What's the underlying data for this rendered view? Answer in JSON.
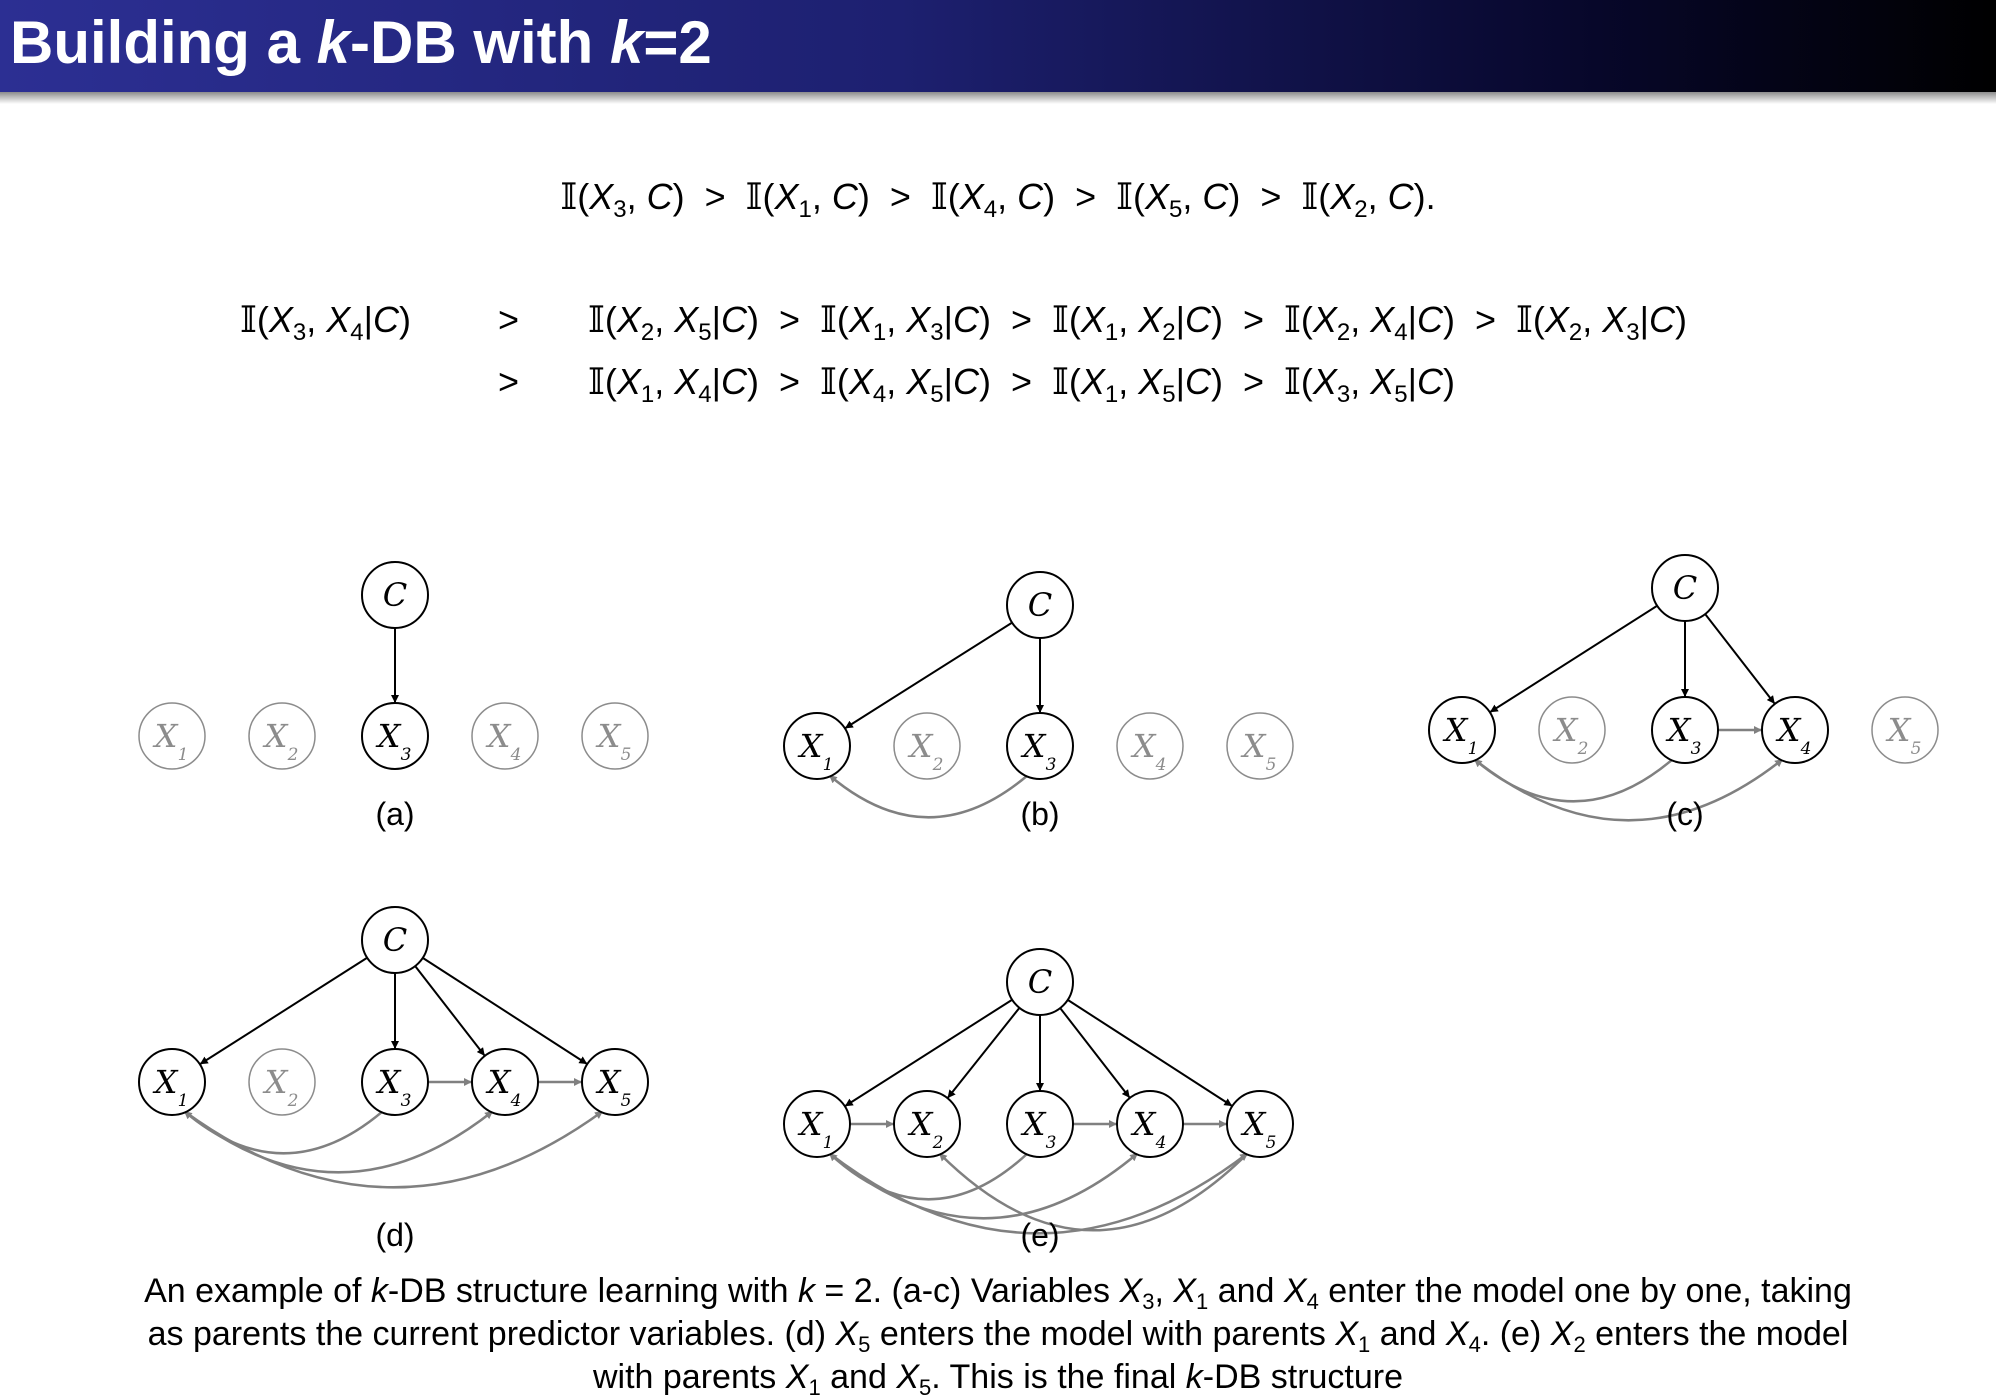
{
  "slide": {
    "title_prefix": "Building a ",
    "title_k": "k",
    "title_mid": "-DB with ",
    "title_k2": "k",
    "title_suffix": "=2"
  },
  "equations": {
    "mi_class": "𝕀(X3, C) > 𝕀(X1, C) > 𝕀(X4, C) > 𝕀(X5, C) > 𝕀(X2, C).",
    "cmi_row1_lhs": "𝕀(X3, X4|C)",
    "cmi_row1_op": ">",
    "cmi_row1_rhs": "𝕀(X2, X5|C) > 𝕀(X1, X3|C) > 𝕀(X1, X2|C) > 𝕀(X2, X4|C) > 𝕀(X2, X3|C)",
    "cmi_row2_op": ">",
    "cmi_row2_rhs": "𝕀(X1, X4|C) > 𝕀(X4, X5|C) > 𝕀(X1, X5|C) > 𝕀(X3, X5|C)"
  },
  "diagram": {
    "class_label": "C",
    "var_letter": "X",
    "panels": [
      {
        "label": "(a)",
        "active": [
          3
        ],
        "class_edges": [
          3
        ],
        "parent_edges": []
      },
      {
        "label": "(b)",
        "active": [
          1,
          3
        ],
        "class_edges": [
          1,
          3
        ],
        "parent_edges": [
          [
            3,
            1
          ]
        ]
      },
      {
        "label": "(c)",
        "active": [
          1,
          3,
          4
        ],
        "class_edges": [
          1,
          3,
          4
        ],
        "parent_edges": [
          [
            3,
            1
          ],
          [
            3,
            4
          ],
          [
            1,
            4
          ]
        ]
      },
      {
        "label": "(d)",
        "active": [
          1,
          3,
          4,
          5
        ],
        "class_edges": [
          1,
          3,
          4,
          5
        ],
        "parent_edges": [
          [
            3,
            1
          ],
          [
            3,
            4
          ],
          [
            1,
            4
          ],
          [
            1,
            5
          ],
          [
            4,
            5
          ]
        ]
      },
      {
        "label": "(e)",
        "active": [
          1,
          2,
          3,
          4,
          5
        ],
        "class_edges": [
          1,
          2,
          3,
          4,
          5
        ],
        "parent_edges": [
          [
            1,
            2
          ],
          [
            3,
            1
          ],
          [
            3,
            4
          ],
          [
            1,
            4
          ],
          [
            1,
            5
          ],
          [
            4,
            5
          ],
          [
            5,
            2
          ]
        ]
      }
    ]
  },
  "caption": {
    "line1": "An example of k-DB structure learning with k = 2. (a-c) Variables X3, X1 and X4 enter the model one by one, taking",
    "line2": "as parents the current predictor variables. (d) X5 enters the model with parents X1 and X4. (e) X2 enters the model",
    "line3": "with parents X1 and X5. This is the final k-DB structure"
  },
  "colors": {
    "title_bar_start": "#2c2f93",
    "title_bar_end": "#000000",
    "active_node": "#000000",
    "inactive_node": "#8c8c8c",
    "parent_edge": "#808080"
  }
}
